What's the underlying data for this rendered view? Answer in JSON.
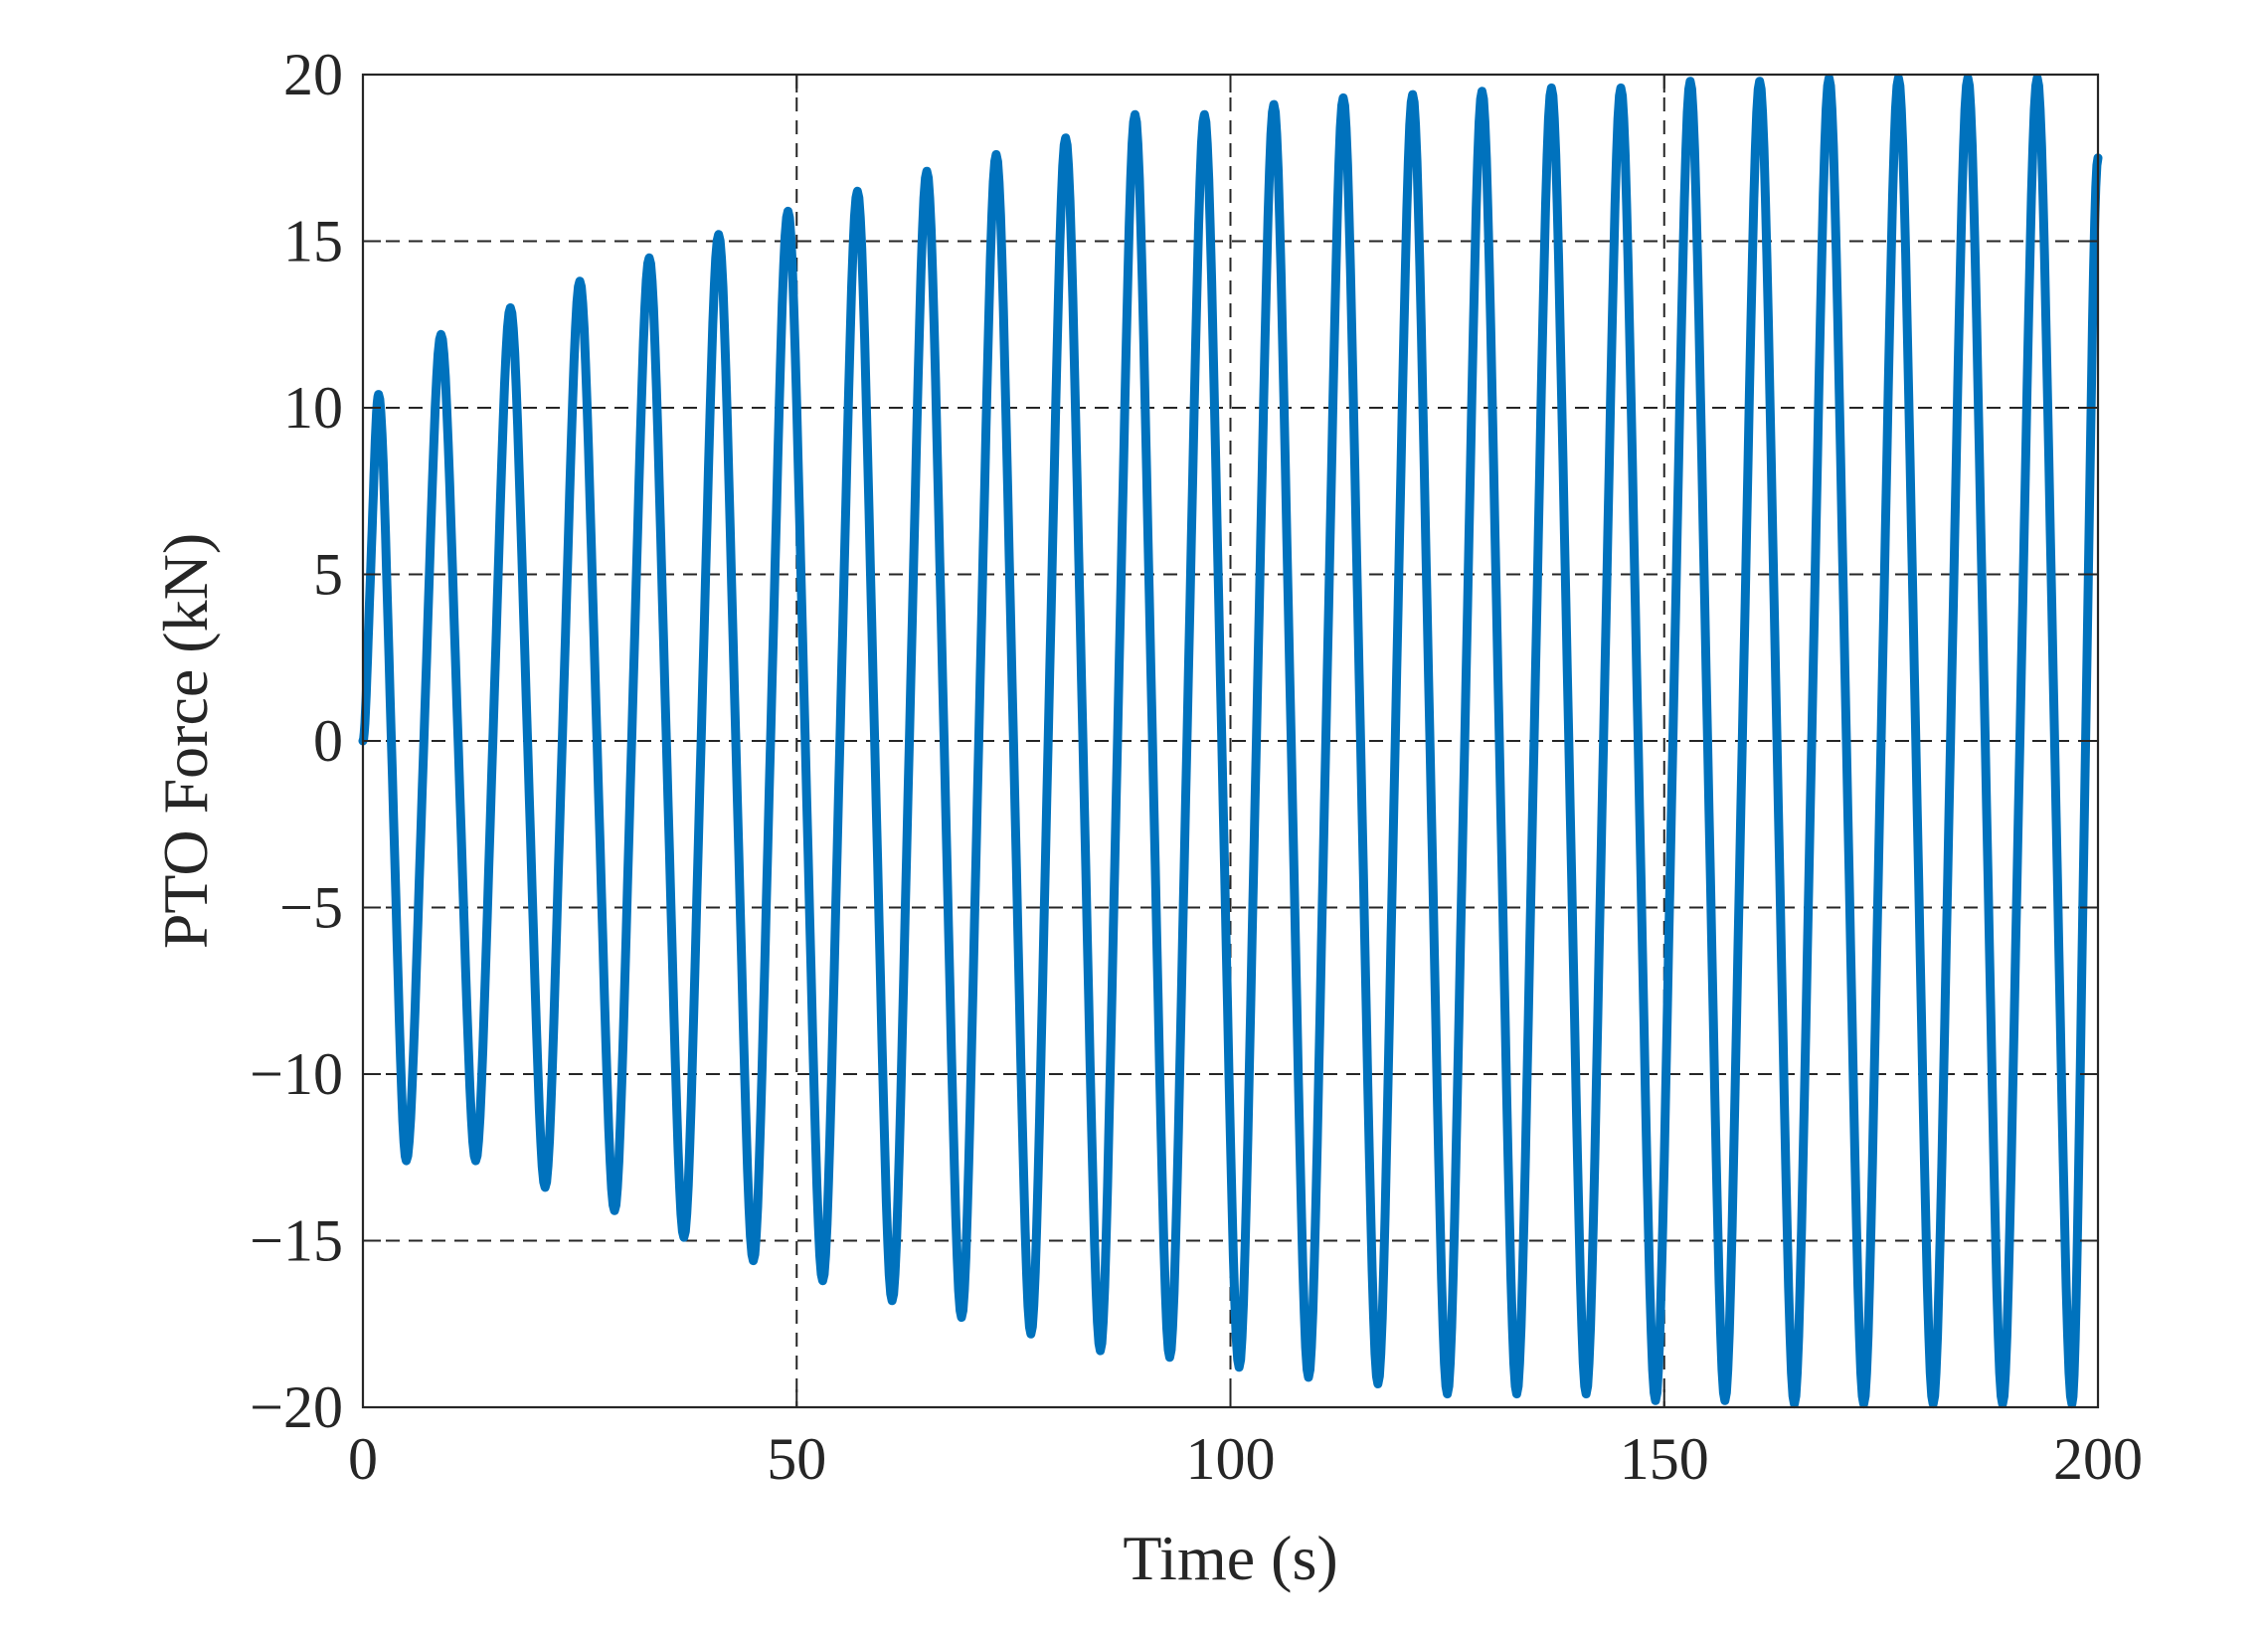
{
  "chart_data": {
    "type": "line",
    "title": "",
    "xlabel": "Time (s)",
    "ylabel": "PTO Force (kN)",
    "xlim": [
      0,
      200
    ],
    "ylim": [
      -20,
      20
    ],
    "xticks": [
      0,
      50,
      100,
      150,
      200
    ],
    "xtick_labels": [
      "0",
      "50",
      "100",
      "150",
      "200"
    ],
    "yticks": [
      -20,
      -15,
      -10,
      -5,
      0,
      5,
      10,
      15,
      20
    ],
    "ytick_labels": [
      "−20",
      "−15",
      "−10",
      "−5",
      "0",
      "5",
      "10",
      "15",
      "20"
    ],
    "grid": "dashed",
    "legend": "none",
    "series": [
      {
        "color": "#0072BD",
        "description": "oscillating PTO force, period about 8 s, with growing amplitude",
        "x": [
          0,
          1.8,
          5.0,
          9.0,
          13.0,
          17.0,
          21.0,
          25.0,
          29.0,
          33.0,
          37.0,
          41.0,
          45.0,
          49.0,
          53.0,
          57.0,
          61.0,
          65.0,
          69.0,
          73.0,
          77.0,
          81.0,
          85.0,
          89.0,
          93.0,
          97.0,
          101.0,
          105.0,
          109.0,
          113.0,
          117.0,
          121.0,
          125.0,
          129.0,
          133.0,
          137.0,
          141.0,
          145.0,
          149.0,
          153.0,
          157.0,
          161.0,
          165.0,
          169.0,
          173.0,
          177.0,
          181.0,
          185.0,
          189.0,
          193.0,
          197.0,
          200.0
        ],
        "y": [
          0,
          10.4,
          -12.6,
          12.2,
          -12.6,
          13.0,
          -13.4,
          13.8,
          -14.1,
          14.5,
          -14.9,
          15.2,
          -15.6,
          15.9,
          -16.2,
          16.5,
          -16.8,
          17.1,
          -17.3,
          17.6,
          -17.8,
          18.1,
          -18.3,
          18.8,
          -18.5,
          18.8,
          -18.8,
          19.1,
          -19.1,
          19.3,
          -19.3,
          19.4,
          -19.6,
          19.5,
          -19.6,
          19.6,
          -19.6,
          19.6,
          -19.8,
          19.8,
          -19.8,
          19.8,
          -19.9,
          19.9,
          -19.9,
          19.9,
          -19.9,
          19.9,
          -19.9,
          19.9,
          -19.9,
          17.5
        ]
      }
    ]
  }
}
